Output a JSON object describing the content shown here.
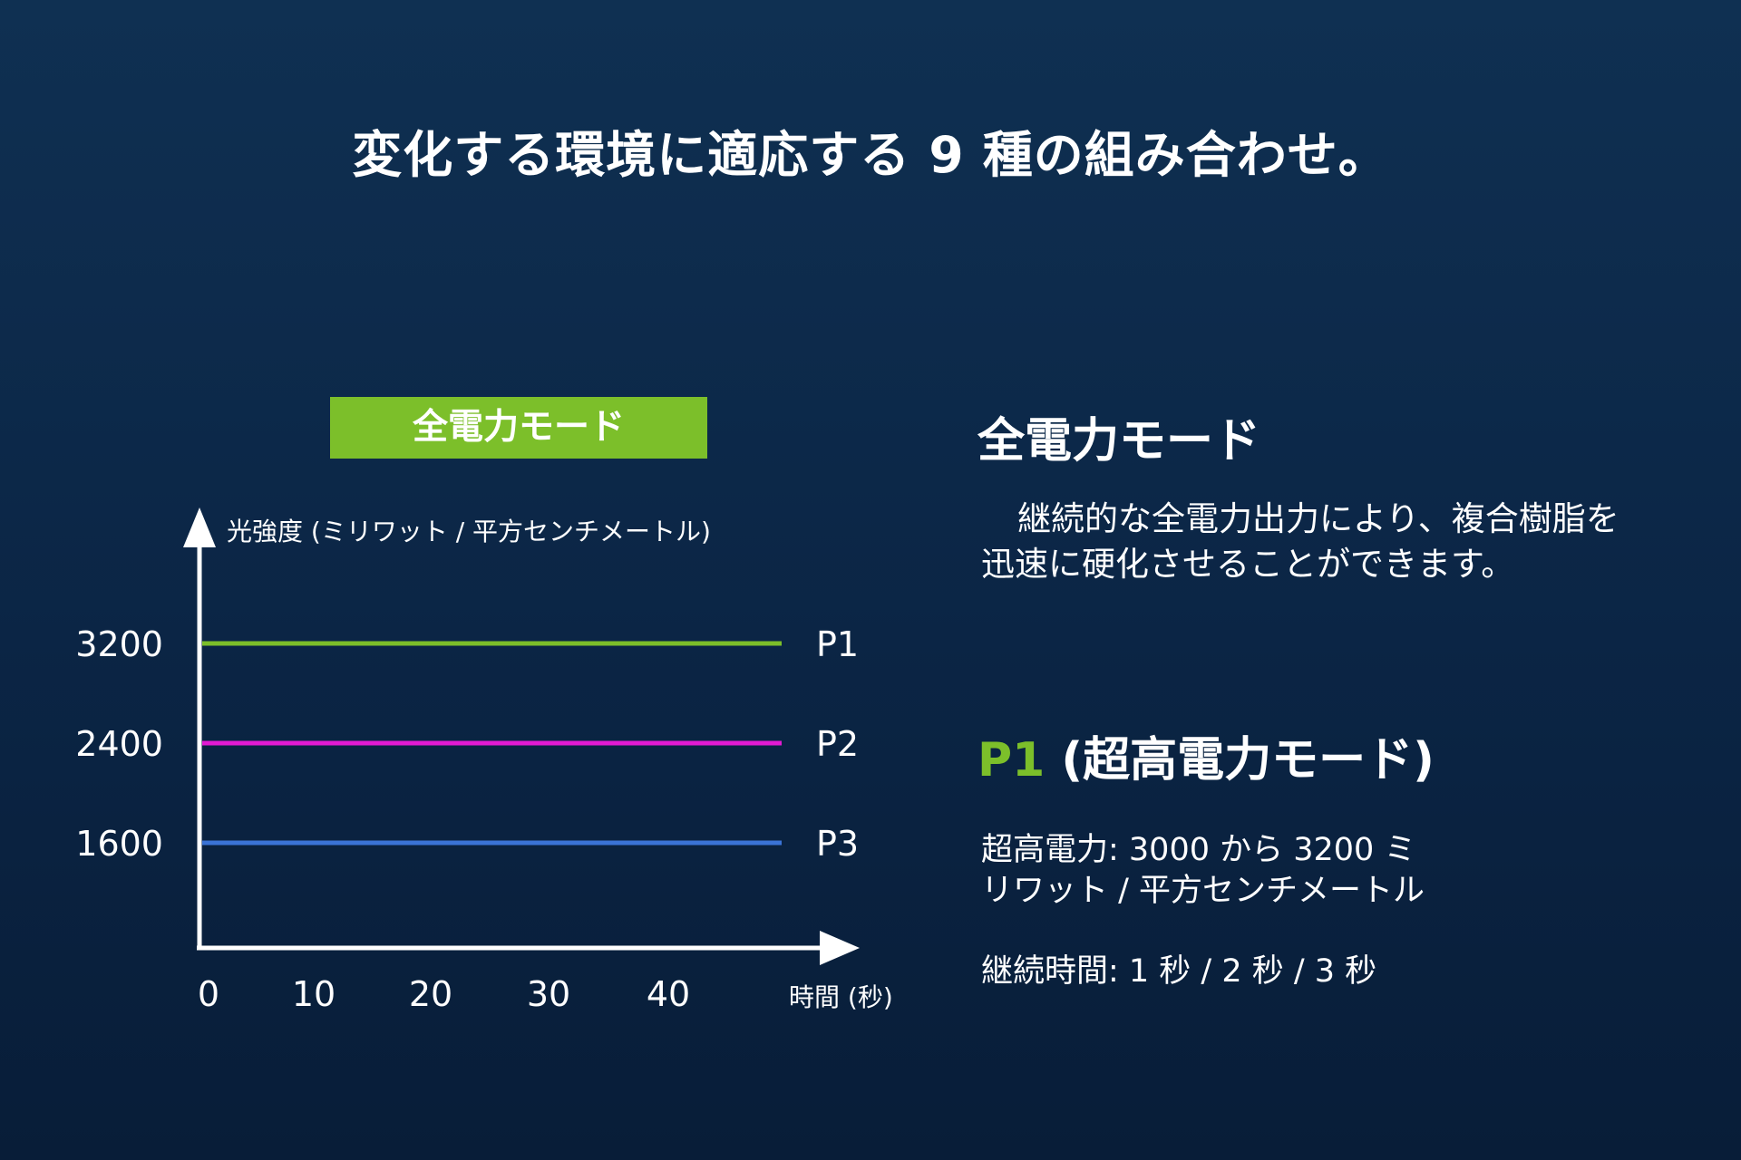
{
  "headline": "変化する環境に適応する 9 種の組み合わせ。",
  "mode_badge": "全電力モード",
  "side_panel": {
    "title": "全電力モード",
    "description": "継続的な全電力出力により、複合樹脂を迅速に硬化させることができます。",
    "p1_tag": "P1",
    "p1_title": " (超高電力モード)",
    "power_spec": "超高電力: 3000 から 3200 ミリワット / 平方センチメートル",
    "duration_spec": "継続時間: 1 秒 / 2 秒 / 3 秒"
  },
  "chart_data": {
    "type": "line",
    "ylabel": "光強度 (ミリワット / 平方センチメートル)",
    "xlabel": "時間 (秒)",
    "x_ticks": [
      "0",
      "10",
      "20",
      "30",
      "40"
    ],
    "y_ticks": [
      "3200",
      "2400",
      "1600"
    ],
    "series": [
      {
        "name": "P1",
        "y": 3200,
        "x_start": 0,
        "x_end": 50,
        "color": "#7cbf2a"
      },
      {
        "name": "P2",
        "y": 2400,
        "x_start": 0,
        "x_end": 50,
        "color": "#e21ad2"
      },
      {
        "name": "P3",
        "y": 1600,
        "x_start": 0,
        "x_end": 50,
        "color": "#3a73d6"
      }
    ]
  }
}
